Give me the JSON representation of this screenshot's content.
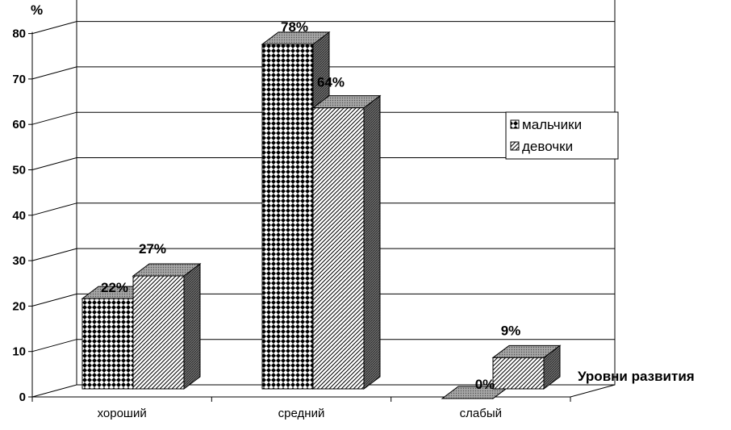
{
  "chart_data": {
    "type": "bar",
    "categories": [
      "хороший",
      "средний",
      "слабый"
    ],
    "series": [
      {
        "name": "мальчики",
        "values": [
          22,
          78,
          0
        ],
        "labels": [
          "22%",
          "78%",
          "0%"
        ],
        "pattern": "diamond-check"
      },
      {
        "name": "девочки",
        "values": [
          27,
          64,
          9
        ],
        "labels": [
          "27%",
          "64%",
          "9%"
        ],
        "pattern": "diagonal-hatch"
      }
    ],
    "ylabel": "%",
    "xlabel": "Уровни развития",
    "ylim": [
      0,
      80
    ],
    "yticks": [
      0,
      10,
      20,
      30,
      40,
      50,
      60,
      70,
      80
    ],
    "grid": true,
    "legend": "right",
    "three_d": true
  }
}
